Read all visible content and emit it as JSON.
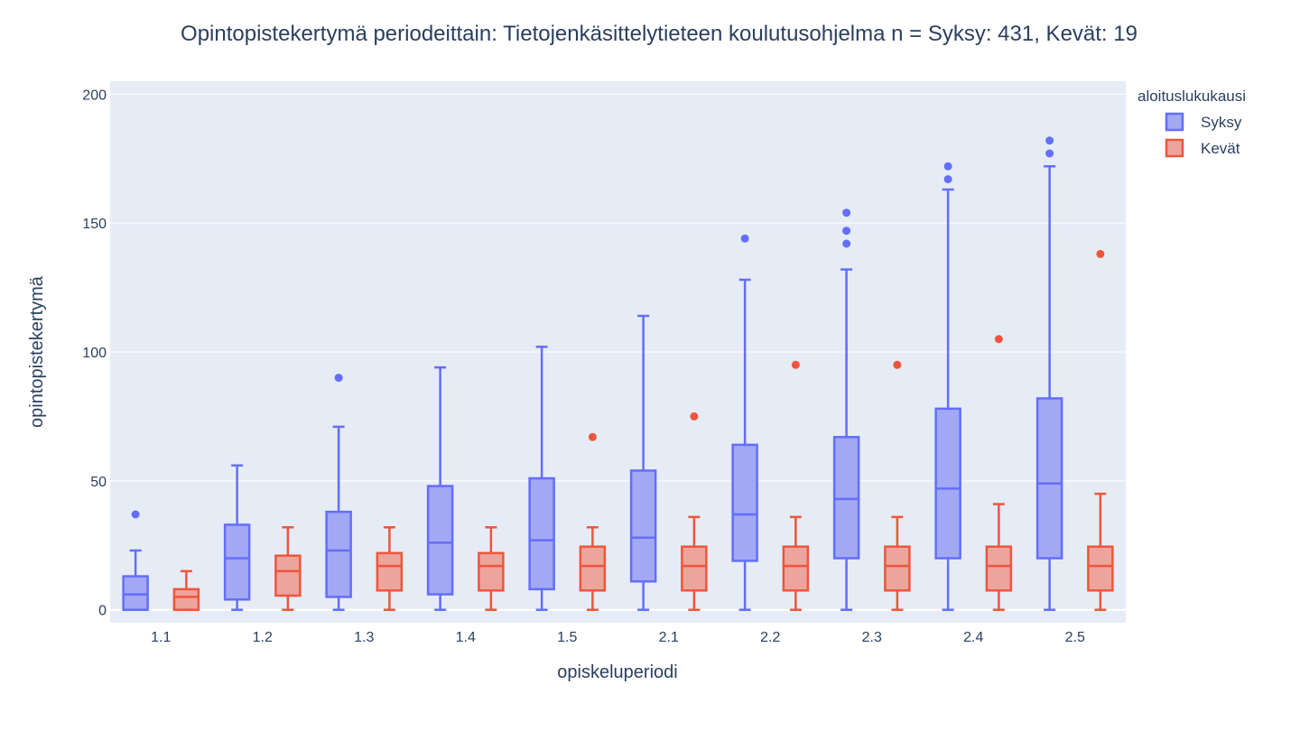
{
  "chart_data": {
    "type": "box",
    "title": "Opintopistekertymä periodeittain: Tietojenkäsittelytieteen koulutusohjelma n = Syksy: 431, Kevät: 19",
    "xlabel": "opiskeluperiodi",
    "ylabel": "opintopistekertymä",
    "categories": [
      "1.1",
      "1.2",
      "1.3",
      "1.4",
      "1.5",
      "2.1",
      "2.2",
      "2.3",
      "2.4",
      "2.5"
    ],
    "ylim": [
      -5,
      205
    ],
    "yticks": [
      0,
      50,
      100,
      150,
      200
    ],
    "grid": true,
    "legend": {
      "title": "aloituslukukausi",
      "position": "top-right"
    },
    "series": [
      {
        "name": "Syksy",
        "color": "#636efa",
        "fill": "#a3a8f4",
        "boxes": [
          {
            "min": 0,
            "q1": 0,
            "median": 6,
            "q3": 13,
            "max": 23,
            "outliers": [
              37
            ]
          },
          {
            "min": 0,
            "q1": 4,
            "median": 20,
            "q3": 33,
            "max": 56,
            "outliers": []
          },
          {
            "min": 0,
            "q1": 5,
            "median": 23,
            "q3": 38,
            "max": 71,
            "outliers": [
              90
            ]
          },
          {
            "min": 0,
            "q1": 6,
            "median": 26,
            "q3": 48,
            "max": 94,
            "outliers": []
          },
          {
            "min": 0,
            "q1": 8,
            "median": 27,
            "q3": 51,
            "max": 102,
            "outliers": []
          },
          {
            "min": 0,
            "q1": 11,
            "median": 28,
            "q3": 54,
            "max": 114,
            "outliers": []
          },
          {
            "min": 0,
            "q1": 19,
            "median": 37,
            "q3": 64,
            "max": 128,
            "outliers": [
              144
            ]
          },
          {
            "min": 0,
            "q1": 20,
            "median": 43,
            "q3": 67,
            "max": 132,
            "outliers": [
              142,
              147,
              154
            ]
          },
          {
            "min": 0,
            "q1": 20,
            "median": 47,
            "q3": 78,
            "max": 163,
            "outliers": [
              167,
              172
            ]
          },
          {
            "min": 0,
            "q1": 20,
            "median": 49,
            "q3": 82,
            "max": 172,
            "outliers": [
              177,
              182
            ]
          }
        ]
      },
      {
        "name": "Kevät",
        "color": "#ef553b",
        "fill": "#eba59c",
        "boxes": [
          {
            "min": 0,
            "q1": 0,
            "median": 5,
            "q3": 8,
            "max": 15,
            "outliers": []
          },
          {
            "min": 0,
            "q1": 5.5,
            "median": 15,
            "q3": 21,
            "max": 32,
            "outliers": []
          },
          {
            "min": 0,
            "q1": 7.5,
            "median": 17,
            "q3": 22,
            "max": 32,
            "outliers": []
          },
          {
            "min": 0,
            "q1": 7.5,
            "median": 17,
            "q3": 22,
            "max": 32,
            "outliers": []
          },
          {
            "min": 0,
            "q1": 7.5,
            "median": 17,
            "q3": 24.5,
            "max": 32,
            "outliers": [
              67
            ]
          },
          {
            "min": 0,
            "q1": 7.5,
            "median": 17,
            "q3": 24.5,
            "max": 36,
            "outliers": [
              75
            ]
          },
          {
            "min": 0,
            "q1": 7.5,
            "median": 17,
            "q3": 24.5,
            "max": 36,
            "outliers": [
              95
            ]
          },
          {
            "min": 0,
            "q1": 7.5,
            "median": 17,
            "q3": 24.5,
            "max": 36,
            "outliers": [
              95
            ]
          },
          {
            "min": 0,
            "q1": 7.5,
            "median": 17,
            "q3": 24.5,
            "max": 41,
            "outliers": [
              105
            ]
          },
          {
            "min": 0,
            "q1": 7.5,
            "median": 17,
            "q3": 24.5,
            "max": 45,
            "outliers": [
              138
            ]
          }
        ]
      }
    ]
  }
}
